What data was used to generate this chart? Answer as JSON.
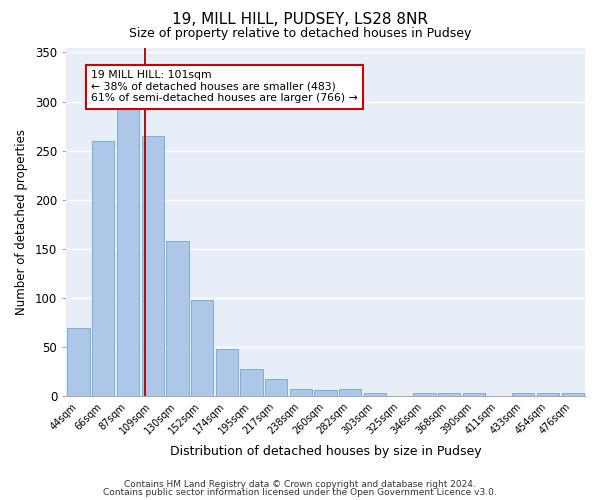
{
  "title1": "19, MILL HILL, PUDSEY, LS28 8NR",
  "title2": "Size of property relative to detached houses in Pudsey",
  "xlabel": "Distribution of detached houses by size in Pudsey",
  "ylabel": "Number of detached properties",
  "categories": [
    "44sqm",
    "66sqm",
    "87sqm",
    "109sqm",
    "130sqm",
    "152sqm",
    "174sqm",
    "195sqm",
    "217sqm",
    "238sqm",
    "260sqm",
    "282sqm",
    "303sqm",
    "325sqm",
    "346sqm",
    "368sqm",
    "390sqm",
    "411sqm",
    "433sqm",
    "454sqm",
    "476sqm"
  ],
  "values": [
    70,
    260,
    295,
    265,
    158,
    98,
    48,
    28,
    18,
    8,
    6,
    8,
    3,
    0,
    3,
    3,
    3,
    0,
    3,
    3,
    3
  ],
  "bar_color": "#aec6e8",
  "bar_edge_color": "#6aaad4",
  "background_color": "#e8eef8",
  "vline_x": 2.68,
  "vline_color": "#aa0000",
  "annotation_box_text": "19 MILL HILL: 101sqm\n← 38% of detached houses are smaller (483)\n61% of semi-detached houses are larger (766) →",
  "annotation_box_color": "#cc0000",
  "ylim": [
    0,
    355
  ],
  "yticks": [
    0,
    50,
    100,
    150,
    200,
    250,
    300,
    350
  ],
  "footer1": "Contains HM Land Registry data © Crown copyright and database right 2024.",
  "footer2": "Contains public sector information licensed under the Open Government Licence v3.0."
}
